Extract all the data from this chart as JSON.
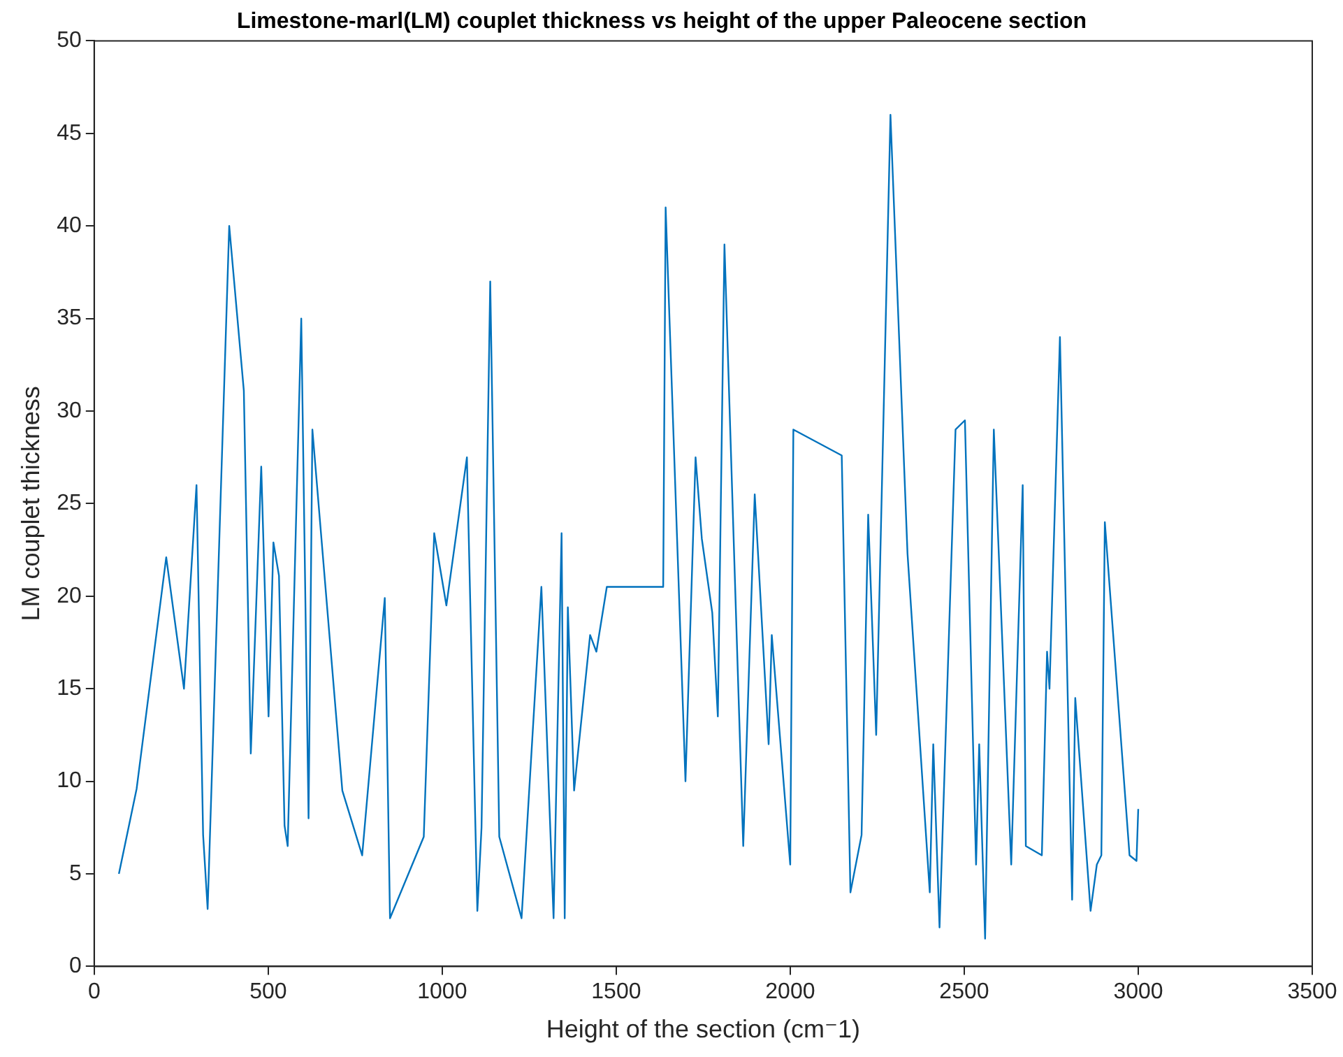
{
  "chart_data": {
    "type": "line",
    "title": "Limestone-marl(LM) couplet thickness vs height of the upper Paleocene section",
    "xlabel": "Height of the section (cm⁻1)",
    "ylabel": "LM couplet thickness",
    "x": [
      71,
      122,
      207,
      258,
      294,
      313,
      326,
      388,
      430,
      450,
      480,
      501,
      515,
      531,
      547,
      556,
      595,
      616,
      627,
      713,
      770,
      835,
      850,
      947,
      977,
      1012,
      1071,
      1101,
      1113,
      1138,
      1164,
      1228,
      1285,
      1320,
      1343,
      1352,
      1361,
      1379,
      1425,
      1443,
      1473,
      1635,
      1642,
      1699,
      1728,
      1746,
      1776,
      1792,
      1811,
      1865,
      1898,
      1938,
      1947,
      2000,
      2009,
      2148,
      2173,
      2205,
      2224,
      2247,
      2288,
      2337,
      2401,
      2411,
      2429,
      2475,
      2502,
      2534,
      2543,
      2560,
      2585,
      2635,
      2668,
      2677,
      2723,
      2738,
      2745,
      2775,
      2810,
      2819,
      2863,
      2881,
      2894,
      2904,
      2975,
      2995,
      3000
    ],
    "values": [
      5.0,
      9.6,
      22.1,
      15.0,
      26.0,
      7.1,
      3.1,
      40.0,
      31.1,
      11.5,
      27.0,
      13.5,
      22.9,
      21.1,
      7.6,
      6.5,
      35.0,
      8.0,
      29.0,
      9.5,
      6.0,
      19.9,
      2.6,
      7.0,
      23.4,
      19.5,
      27.5,
      3.0,
      7.5,
      37.0,
      7.0,
      2.6,
      20.5,
      2.6,
      23.4,
      2.6,
      19.4,
      9.5,
      17.9,
      17.0,
      20.5,
      20.5,
      41.0,
      10.0,
      27.5,
      23.1,
      19.1,
      13.5,
      39.0,
      6.5,
      25.5,
      12.0,
      17.9,
      5.5,
      29.0,
      27.6,
      4.0,
      7.1,
      24.4,
      12.5,
      46.0,
      22.3,
      4.0,
      12.0,
      2.1,
      29.0,
      29.5,
      5.5,
      12.0,
      1.5,
      29.0,
      5.5,
      26.0,
      6.5,
      6.0,
      17.0,
      15.0,
      34.0,
      3.6,
      14.5,
      3.0,
      5.5,
      6.0,
      24.0,
      6.0,
      5.7,
      8.5
    ],
    "color": "#0072bd",
    "xlim": [
      0,
      3500
    ],
    "xticks": [
      0,
      500,
      1000,
      1500,
      2000,
      2500,
      3000,
      3500
    ],
    "ylim": [
      0,
      50
    ],
    "yticks": [
      0,
      5,
      10,
      15,
      20,
      25,
      30,
      35,
      40,
      45,
      50
    ],
    "grid": false,
    "legend": false,
    "marker": "none",
    "line_style": "solid"
  }
}
